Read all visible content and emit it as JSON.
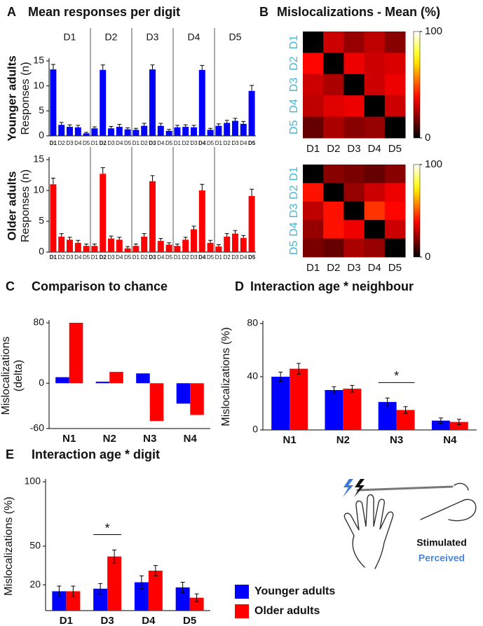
{
  "chart_data": [
    {
      "type": "grouped-bar",
      "panel": "A",
      "title": "Mean responses per digit",
      "group_label": "Younger adults",
      "ylabel": "Responses (n)",
      "groups": [
        "D1",
        "D2",
        "D3",
        "D4",
        "D5"
      ],
      "categories": [
        "D1",
        "D2",
        "D3",
        "D4",
        "D5"
      ],
      "color": "#0000ff",
      "values": [
        [
          13.3,
          2.2,
          1.8,
          1.7,
          0.5
        ],
        [
          1.5,
          13.2,
          1.5,
          1.8,
          1.3
        ],
        [
          1.2,
          2.0,
          13.3,
          2.0,
          1.0
        ],
        [
          1.7,
          1.8,
          1.7,
          13.2,
          1.2
        ],
        [
          2.0,
          2.6,
          3.0,
          2.4,
          9.0
        ]
      ],
      "errors": [
        [
          1.0,
          0.5,
          0.4,
          0.4,
          0.2
        ],
        [
          0.3,
          1.0,
          0.4,
          0.5,
          0.3
        ],
        [
          0.3,
          0.5,
          0.9,
          0.5,
          0.3
        ],
        [
          0.4,
          0.4,
          0.4,
          0.9,
          0.3
        ],
        [
          0.4,
          0.5,
          0.5,
          0.5,
          1.1
        ]
      ],
      "ylim": [
        0,
        15
      ],
      "yticks": [
        0,
        5,
        10,
        15
      ]
    },
    {
      "type": "grouped-bar",
      "group_label": "Older adults",
      "ylabel": "Responses (n)",
      "categories": [
        "D1",
        "D2",
        "D3",
        "D4",
        "D5"
      ],
      "color": "#ff0000",
      "values": [
        [
          11.0,
          2.5,
          2.0,
          1.5,
          1.0
        ],
        [
          1.0,
          12.7,
          2.2,
          2.0,
          0.6
        ],
        [
          1.0,
          2.5,
          11.5,
          1.8,
          1.2
        ],
        [
          1.0,
          2.0,
          3.7,
          10.0,
          1.5
        ],
        [
          0.9,
          2.5,
          3.0,
          2.3,
          9.1
        ]
      ],
      "errors": [
        [
          1.0,
          0.5,
          0.4,
          0.4,
          0.3
        ],
        [
          0.3,
          1.0,
          0.4,
          0.4,
          0.3
        ],
        [
          0.3,
          0.5,
          0.9,
          0.4,
          0.3
        ],
        [
          0.3,
          0.4,
          0.5,
          1.0,
          0.4
        ],
        [
          0.3,
          0.5,
          0.5,
          0.4,
          1.1
        ]
      ],
      "ylim": [
        0,
        15
      ],
      "yticks": [
        0,
        5,
        10,
        15
      ]
    },
    {
      "type": "heatmap",
      "panel": "B",
      "title": "Mislocalizations - Mean (%)",
      "colormap": "hot",
      "rows": [
        "D1",
        "D2",
        "D3",
        "D4",
        "D5"
      ],
      "columns": [
        "D1",
        "D2",
        "D3",
        "D4",
        "D5"
      ],
      "values": [
        [
          0,
          30,
          22,
          28,
          20
        ],
        [
          38,
          0,
          35,
          30,
          32
        ],
        [
          30,
          25,
          0,
          30,
          35
        ],
        [
          28,
          33,
          35,
          0,
          30
        ],
        [
          15,
          25,
          20,
          22,
          0
        ]
      ],
      "clim": [
        0,
        100
      ],
      "cticks": [
        0,
        100
      ]
    },
    {
      "type": "heatmap",
      "colormap": "hot",
      "rows": [
        "D1",
        "D2",
        "D3",
        "D4",
        "D5"
      ],
      "columns": [
        "D1",
        "D2",
        "D3",
        "D4",
        "D5"
      ],
      "values": [
        [
          0,
          20,
          18,
          15,
          20
        ],
        [
          40,
          0,
          22,
          30,
          35
        ],
        [
          28,
          40,
          0,
          45,
          38
        ],
        [
          22,
          40,
          35,
          0,
          30
        ],
        [
          18,
          15,
          25,
          22,
          0
        ]
      ],
      "clim": [
        0,
        100
      ],
      "cticks": [
        0,
        100
      ]
    },
    {
      "type": "bar",
      "panel": "C",
      "title": "Comparison to chance",
      "ylabel": [
        "Mislocalizations",
        "(delta)"
      ],
      "categories": [
        "N1",
        "N2",
        "N3",
        "N4"
      ],
      "series": [
        {
          "color": "#0000ff",
          "values": [
            8,
            2,
            13,
            -27
          ]
        },
        {
          "color": "#ff0000",
          "values": [
            80,
            15,
            -50,
            -42
          ]
        }
      ],
      "ylim": [
        -60,
        80
      ],
      "yticks": [
        -60,
        0,
        80
      ]
    },
    {
      "type": "bar",
      "panel": "D",
      "title": "Interaction age * neighbour",
      "ylabel": [
        "Mislocalizations (%)"
      ],
      "categories": [
        "N1",
        "N2",
        "N3",
        "N4"
      ],
      "series": [
        {
          "color": "#0000ff",
          "values": [
            40,
            30,
            21,
            7
          ],
          "errors": [
            3.5,
            2.5,
            3,
            2
          ]
        },
        {
          "color": "#ff0000",
          "values": [
            46,
            31,
            15,
            6
          ],
          "errors": [
            4,
            2.5,
            2.5,
            2
          ]
        }
      ],
      "annotations": [
        {
          "text": "*",
          "category": "N3"
        }
      ],
      "ylim": [
        0,
        80
      ],
      "yticks": [
        0,
        40,
        80
      ]
    },
    {
      "type": "bar",
      "panel": "E",
      "title": "Interaction age * digit",
      "ylabel": [
        "Mislocalizations (%)"
      ],
      "categories": [
        "D1",
        "D3",
        "D4",
        "D5"
      ],
      "series": [
        {
          "color": "#0000ff",
          "values": [
            15,
            17,
            22,
            18
          ],
          "errors": [
            4,
            4,
            5,
            4
          ]
        },
        {
          "color": "#ff0000",
          "values": [
            15,
            42,
            31,
            10
          ],
          "errors": [
            4,
            5,
            4,
            3
          ]
        }
      ],
      "annotations": [
        {
          "text": "*",
          "category": "D3"
        }
      ],
      "ylim": [
        0,
        100
      ],
      "yticks": [
        20,
        50,
        100
      ]
    }
  ],
  "legend": [
    {
      "name": "Younger adults",
      "color": "#0000ff"
    },
    {
      "name": "Older adults",
      "color": "#ff0000"
    }
  ],
  "illustration": {
    "stimulated": "Stimulated",
    "perceived": "Perceived"
  }
}
